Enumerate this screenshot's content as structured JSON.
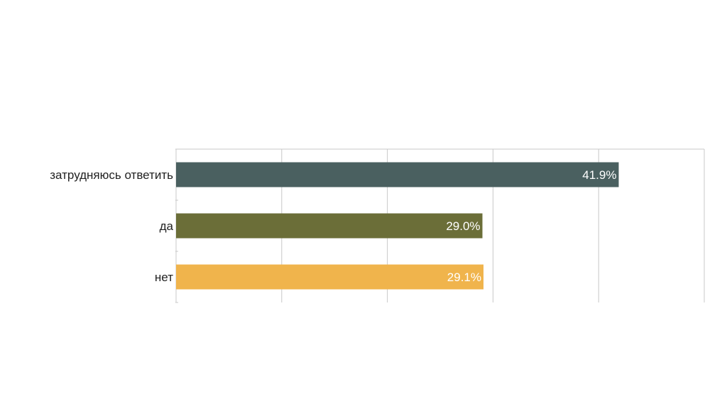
{
  "chart_data": {
    "type": "bar",
    "orientation": "horizontal",
    "categories": [
      "затрудняюсь ответить",
      "да",
      "нет"
    ],
    "values": [
      41.9,
      29.0,
      29.1
    ],
    "value_labels": [
      "41.9%",
      "29.0%",
      "29.1%"
    ],
    "colors": [
      "#4a6060",
      "#6b6e38",
      "#f0b44c"
    ],
    "xlim": [
      0,
      50
    ],
    "x_gridlines": [
      0,
      10,
      20,
      30,
      40,
      50
    ],
    "grid": true,
    "tick_labels_visible": false,
    "legend": "none"
  }
}
